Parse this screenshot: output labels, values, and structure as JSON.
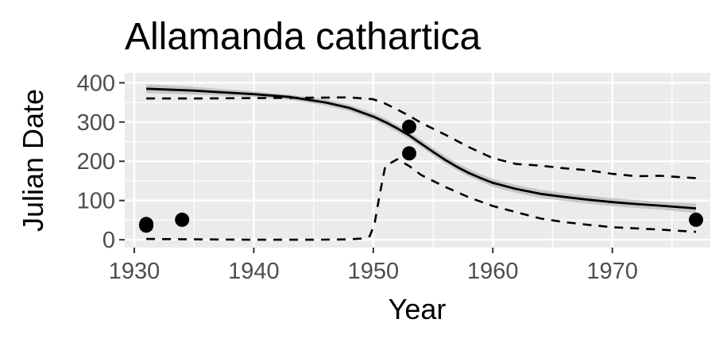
{
  "chart_data": {
    "type": "scatter",
    "title": "Allamanda cathartica",
    "xlabel": "Year",
    "ylabel": "Julian Date",
    "xlim": [
      1929.2,
      1978.2
    ],
    "ylim": [
      -20,
      425
    ],
    "x_ticks": [
      1930,
      1940,
      1950,
      1960,
      1970
    ],
    "y_ticks": [
      0,
      100,
      200,
      300,
      400
    ],
    "grid": true,
    "colors": {
      "panel": "#ebebeb",
      "grid": "#ffffff",
      "points": "#000000",
      "fit_line": "#000000",
      "ribbon": "#bdbdbd",
      "tick_text": "#4d4d4d"
    },
    "points": [
      {
        "x": 1931,
        "y": 36
      },
      {
        "x": 1931,
        "y": 40
      },
      {
        "x": 1934,
        "y": 51
      },
      {
        "x": 1953,
        "y": 220
      },
      {
        "x": 1953,
        "y": 288
      },
      {
        "x": 1977,
        "y": 51
      }
    ],
    "series": [
      {
        "role": "fit",
        "style": "solid",
        "x": [
          1931,
          1935,
          1940,
          1943,
          1946,
          1948,
          1950,
          1951,
          1952,
          1953,
          1954,
          1955,
          1956,
          1957,
          1958,
          1959,
          1960,
          1962,
          1964,
          1966,
          1968,
          1970,
          1972,
          1974,
          1977
        ],
        "y": [
          385,
          380,
          371,
          364,
          350,
          336,
          314,
          300,
          284,
          266,
          245,
          224,
          204,
          186,
          170,
          157,
          145,
          129,
          117,
          109,
          102,
          96,
          91,
          87,
          80
        ],
        "ribbon_upper": [
          396,
          390,
          378,
          370,
          358,
          344,
          323,
          309,
          293,
          275,
          255,
          234,
          214,
          196,
          180,
          167,
          155,
          139,
          127,
          119,
          112,
          106,
          101,
          97,
          92
        ],
        "ribbon_lower": [
          374,
          370,
          364,
          357,
          342,
          328,
          305,
          291,
          275,
          257,
          236,
          215,
          195,
          177,
          161,
          148,
          135,
          119,
          107,
          99,
          92,
          86,
          81,
          77,
          68
        ]
      },
      {
        "role": "upper-bound",
        "style": "dashed",
        "x": [
          1931,
          1935,
          1940,
          1945,
          1948,
          1950,
          1951,
          1952,
          1953,
          1954,
          1956,
          1958,
          1960,
          1962,
          1964,
          1966,
          1968,
          1970,
          1972,
          1974,
          1977
        ],
        "y": [
          360,
          360,
          361,
          362,
          363,
          358,
          347,
          332,
          316,
          298,
          268,
          236,
          208,
          193,
          189,
          182,
          177,
          168,
          162,
          163,
          157
        ]
      },
      {
        "role": "lower-bound",
        "style": "dashed",
        "x": [
          1931,
          1935,
          1940,
          1945,
          1948,
          1949,
          1949.7,
          1950.1,
          1950.5,
          1951,
          1952,
          1953,
          1954,
          1956,
          1958,
          1960,
          1962,
          1964,
          1966,
          1968,
          1970,
          1972,
          1974,
          1977
        ],
        "y": [
          2,
          1,
          0,
          0,
          1,
          3,
          9,
          40,
          110,
          188,
          205,
          188,
          165,
          135,
          108,
          86,
          70,
          54,
          45,
          38,
          32,
          29,
          26,
          20
        ]
      }
    ]
  }
}
